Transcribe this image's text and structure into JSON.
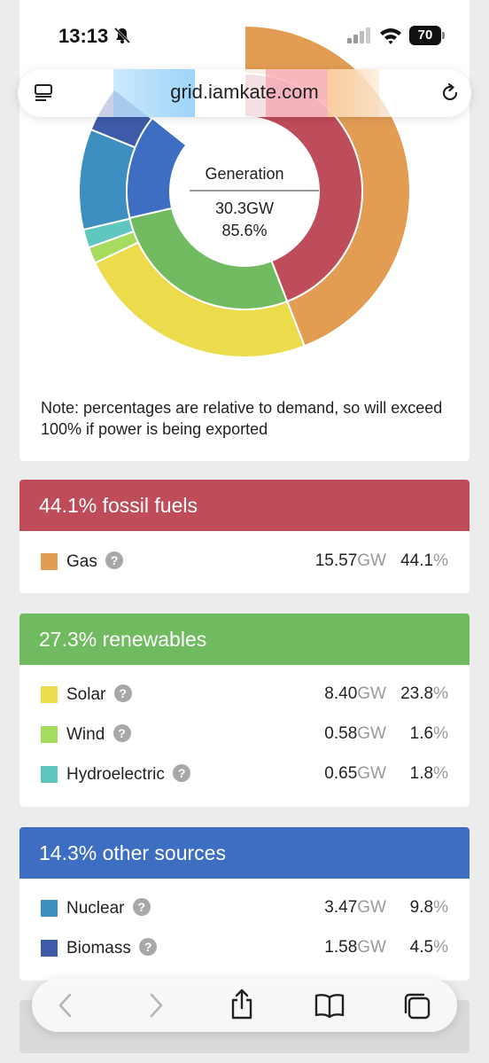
{
  "status": {
    "time": "13:13",
    "battery": "70"
  },
  "browser": {
    "url": "grid.iamkate.com"
  },
  "chart_data": {
    "type": "pie",
    "center_title": "Generation",
    "center_value": "30.3GW",
    "center_percent": "85.6%",
    "inner_ring": [
      {
        "group": "fossil fuels",
        "percent": 44.1,
        "color": "#bf4c59"
      },
      {
        "group": "renewables",
        "percent": 27.3,
        "color": "#70bb5f"
      },
      {
        "group": "other sources",
        "percent": 14.3,
        "color": "#3d6ec2"
      }
    ],
    "outer_ring": [
      {
        "source": "Gas",
        "percent": 44.1,
        "color": "#e29d53"
      },
      {
        "source": "Solar",
        "percent": 23.8,
        "color": "#ecdc4c"
      },
      {
        "source": "Wind",
        "percent": 1.6,
        "color": "#a6dc5e"
      },
      {
        "source": "Hydroelectric",
        "percent": 1.8,
        "color": "#5fc7bd"
      },
      {
        "source": "Nuclear",
        "percent": 9.8,
        "color": "#3d8fc1"
      },
      {
        "source": "Biomass",
        "percent": 4.5,
        "color": "#3d5ba8"
      }
    ]
  },
  "note": "Note: percentages are relative to demand, so will exceed 100% if power is being exported",
  "groups": [
    {
      "header": "44.1% fossil fuels",
      "color": "#bf4c59",
      "rows": [
        {
          "label": "Gas",
          "gw": "15.57",
          "pct": "44.1",
          "color": "#e29d53"
        }
      ]
    },
    {
      "header": "27.3% renewables",
      "color": "#70bb5f",
      "rows": [
        {
          "label": "Solar",
          "gw": "8.40",
          "pct": "23.8",
          "color": "#ecdc4c"
        },
        {
          "label": "Wind",
          "gw": "0.58",
          "pct": "1.6",
          "color": "#a6dc5e"
        },
        {
          "label": "Hydroelectric",
          "gw": "0.65",
          "pct": "1.8",
          "color": "#5fc7bd"
        }
      ]
    },
    {
      "header": "14.3% other sources",
      "color": "#3d6ec2",
      "rows": [
        {
          "label": "Nuclear",
          "gw": "3.47",
          "pct": "9.8",
          "color": "#3d8fc1"
        },
        {
          "label": "Biomass",
          "gw": "1.58",
          "pct": "4.5",
          "color": "#3d5ba8"
        }
      ]
    }
  ],
  "units": {
    "gw": "GW",
    "pct": "%",
    "help": "?"
  },
  "icons": {
    "bell": "bell-slash-icon",
    "signal": "signal-icon",
    "wifi": "wifi-icon",
    "reader": "reader-icon",
    "reload": "reload-icon",
    "back": "back-icon",
    "forward": "forward-icon",
    "share": "share-icon",
    "bookmarks": "bookmarks-icon",
    "tabs": "tabs-icon"
  }
}
